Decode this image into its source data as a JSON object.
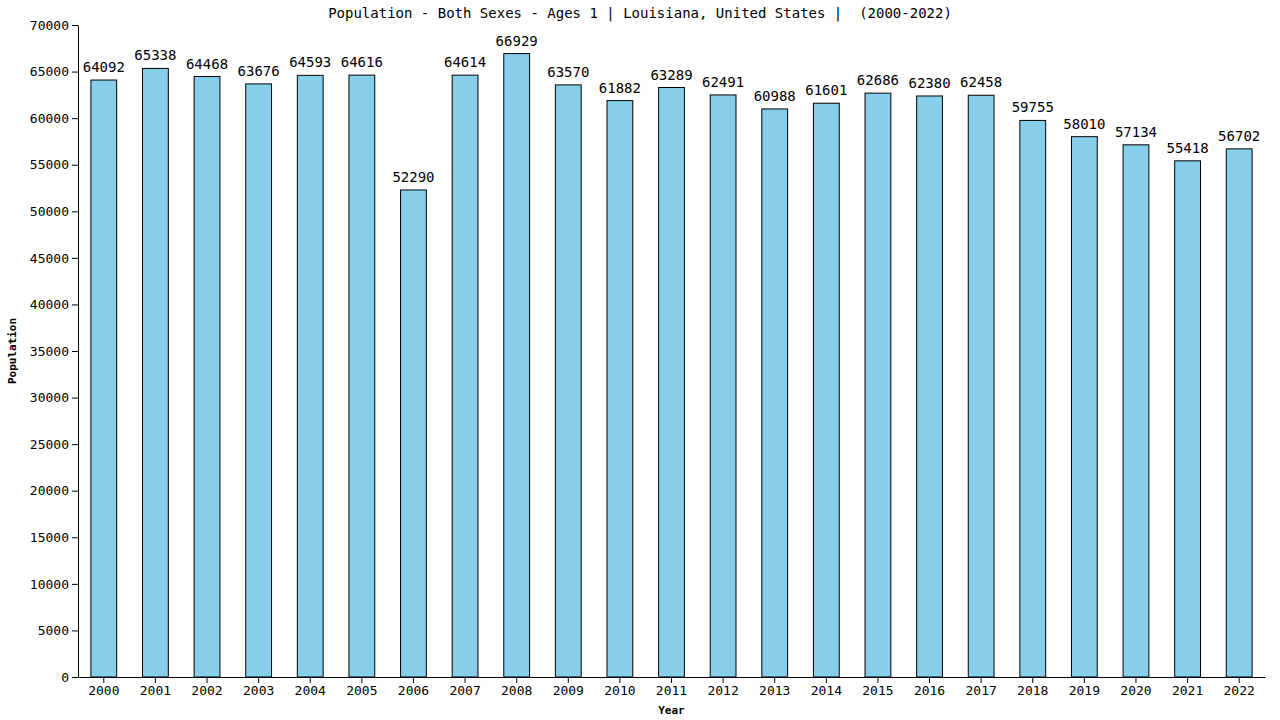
{
  "chart_data": {
    "type": "bar",
    "title": "Population - Both Sexes - Ages 1 | Louisiana, United States |  (2000-2022)",
    "x_label": "Year",
    "y_label": "Population",
    "categories": [
      "2000",
      "2001",
      "2002",
      "2003",
      "2004",
      "2005",
      "2006",
      "2007",
      "2008",
      "2009",
      "2010",
      "2011",
      "2012",
      "2013",
      "2014",
      "2015",
      "2016",
      "2017",
      "2018",
      "2019",
      "2020",
      "2021",
      "2022"
    ],
    "values": [
      64092,
      65338,
      64468,
      63676,
      64593,
      64616,
      52290,
      64614,
      66929,
      63570,
      61882,
      63289,
      62491,
      60988,
      61601,
      62686,
      62380,
      62458,
      59755,
      58010,
      57134,
      55418,
      56702
    ],
    "color": "#87ceeb",
    "ylim": [
      0,
      70000
    ],
    "yticks": [
      0,
      5000,
      10000,
      15000,
      20000,
      25000,
      30000,
      35000,
      40000,
      45000,
      50000,
      55000,
      60000,
      65000,
      70000
    ],
    "grid": false,
    "data_labels": true
  }
}
